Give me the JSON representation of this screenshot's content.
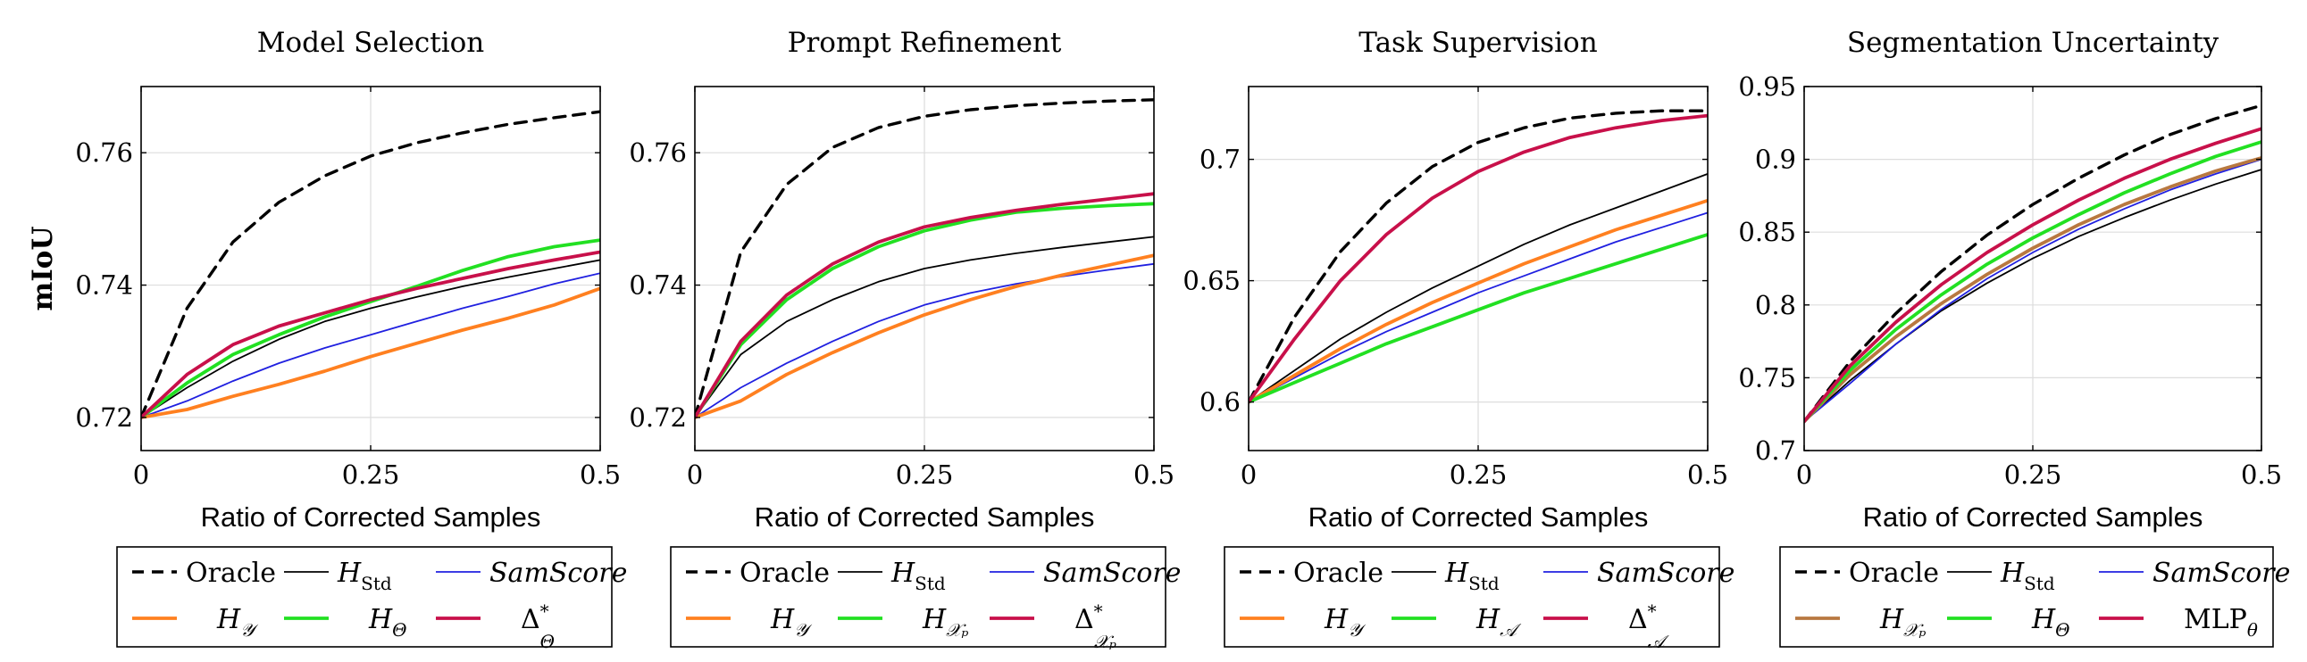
{
  "colors": {
    "oracle": "#000000",
    "h_std": "#000000",
    "samscore": "#2020e0",
    "h_y": "#ff8020",
    "green": "#22e022",
    "crimson": "#c8104a",
    "brown": "#b87840"
  },
  "y_axis_label": "mIoU",
  "chart_data": [
    {
      "type": "line",
      "title": "Model Selection",
      "xlabel": "Ratio of Corrected Samples",
      "ylabel": "mIoU",
      "xlim": [
        0,
        0.5
      ],
      "ylim": [
        0.715,
        0.77
      ],
      "x_ticks": [
        0,
        0.25,
        0.5
      ],
      "x_tick_labels": [
        "0",
        "0.25",
        "0.5"
      ],
      "y_ticks": [
        0.72,
        0.74,
        0.76
      ],
      "y_tick_labels": [
        "0.72",
        "0.74",
        "0.76"
      ],
      "grid": true,
      "legend_position": "below",
      "series": [
        {
          "name": "Oracle",
          "color": "#000000",
          "style": "dashed",
          "x": [
            0,
            0.05,
            0.1,
            0.15,
            0.2,
            0.25,
            0.3,
            0.35,
            0.4,
            0.45,
            0.5
          ],
          "y": [
            0.72,
            0.7365,
            0.7465,
            0.7525,
            0.7565,
            0.7595,
            0.7615,
            0.763,
            0.7643,
            0.7653,
            0.7662
          ]
        },
        {
          "name": "H_Std",
          "color": "#000000",
          "style": "thin",
          "x": [
            0,
            0.05,
            0.1,
            0.15,
            0.2,
            0.25,
            0.3,
            0.35,
            0.4,
            0.45,
            0.5
          ],
          "y": [
            0.72,
            0.7245,
            0.7285,
            0.7318,
            0.7345,
            0.7365,
            0.7382,
            0.7398,
            0.7412,
            0.7425,
            0.7438
          ]
        },
        {
          "name": "SamScore",
          "color": "#2020e0",
          "style": "thin",
          "x": [
            0,
            0.05,
            0.1,
            0.15,
            0.2,
            0.25,
            0.3,
            0.35,
            0.4,
            0.45,
            0.5
          ],
          "y": [
            0.72,
            0.7225,
            0.7255,
            0.7282,
            0.7305,
            0.7325,
            0.7345,
            0.7365,
            0.7383,
            0.7402,
            0.7418
          ]
        },
        {
          "name": "H_Y",
          "color": "#ff8020",
          "style": "thick",
          "x": [
            0,
            0.05,
            0.1,
            0.15,
            0.2,
            0.25,
            0.3,
            0.35,
            0.4,
            0.45,
            0.5
          ],
          "y": [
            0.72,
            0.7212,
            0.7232,
            0.725,
            0.727,
            0.7292,
            0.7312,
            0.7332,
            0.735,
            0.737,
            0.7395
          ]
        },
        {
          "name": "H_Θ",
          "color": "#22e022",
          "style": "thick",
          "x": [
            0,
            0.05,
            0.1,
            0.15,
            0.2,
            0.25,
            0.3,
            0.35,
            0.4,
            0.45,
            0.5
          ],
          "y": [
            0.72,
            0.7252,
            0.7295,
            0.7325,
            0.7352,
            0.7375,
            0.7398,
            0.7422,
            0.7443,
            0.7458,
            0.7468
          ]
        },
        {
          "name": "Δ*_Θ",
          "color": "#c8104a",
          "style": "thick",
          "x": [
            0,
            0.05,
            0.1,
            0.15,
            0.2,
            0.25,
            0.3,
            0.35,
            0.4,
            0.45,
            0.5
          ],
          "y": [
            0.72,
            0.7265,
            0.731,
            0.7338,
            0.7358,
            0.7378,
            0.7395,
            0.741,
            0.7425,
            0.7438,
            0.745
          ]
        }
      ],
      "legend_rows": [
        [
          {
            "label": "Oracle",
            "key": "oracle"
          },
          {
            "label": "H",
            "sub": "Std",
            "key": "h_std"
          },
          {
            "label": "SamScore",
            "key": "samscore",
            "italic": true
          }
        ],
        [
          {
            "label": "H",
            "sub": "𝒴",
            "key": "h_y"
          },
          {
            "label": "H",
            "sub": "Θ",
            "key": "green"
          },
          {
            "label": "Δ",
            "sup": "*",
            "sub": "Θ",
            "key": "crimson"
          }
        ]
      ]
    },
    {
      "type": "line",
      "title": "Prompt Refinement",
      "xlabel": "Ratio of Corrected Samples",
      "ylabel": "",
      "xlim": [
        0,
        0.5
      ],
      "ylim": [
        0.715,
        0.77
      ],
      "x_ticks": [
        0,
        0.25,
        0.5
      ],
      "x_tick_labels": [
        "0",
        "0.25",
        "0.5"
      ],
      "y_ticks": [
        0.72,
        0.74,
        0.76
      ],
      "y_tick_labels": [
        "0.72",
        "0.74",
        "0.76"
      ],
      "grid": true,
      "legend_position": "below",
      "series": [
        {
          "name": "Oracle",
          "color": "#000000",
          "style": "dashed",
          "x": [
            0,
            0.05,
            0.1,
            0.15,
            0.2,
            0.25,
            0.3,
            0.35,
            0.4,
            0.45,
            0.5
          ],
          "y": [
            0.72,
            0.745,
            0.7552,
            0.7608,
            0.7638,
            0.7655,
            0.7665,
            0.7671,
            0.7675,
            0.7678,
            0.768
          ]
        },
        {
          "name": "H_Std",
          "color": "#000000",
          "style": "thin",
          "x": [
            0,
            0.05,
            0.1,
            0.15,
            0.2,
            0.25,
            0.3,
            0.35,
            0.4,
            0.45,
            0.5
          ],
          "y": [
            0.72,
            0.7295,
            0.7345,
            0.7378,
            0.7405,
            0.7425,
            0.7438,
            0.7448,
            0.7457,
            0.7465,
            0.7473
          ]
        },
        {
          "name": "SamScore",
          "color": "#2020e0",
          "style": "thin",
          "x": [
            0,
            0.05,
            0.1,
            0.15,
            0.2,
            0.25,
            0.3,
            0.35,
            0.4,
            0.45,
            0.5
          ],
          "y": [
            0.72,
            0.7245,
            0.7282,
            0.7315,
            0.7345,
            0.737,
            0.7388,
            0.7402,
            0.7413,
            0.7423,
            0.7432
          ]
        },
        {
          "name": "H_Y",
          "color": "#ff8020",
          "style": "thick",
          "x": [
            0,
            0.05,
            0.1,
            0.15,
            0.2,
            0.25,
            0.3,
            0.35,
            0.4,
            0.45,
            0.5
          ],
          "y": [
            0.72,
            0.7225,
            0.7265,
            0.7298,
            0.7328,
            0.7355,
            0.7378,
            0.7398,
            0.7415,
            0.743,
            0.7445
          ]
        },
        {
          "name": "H_XP",
          "color": "#22e022",
          "style": "thick",
          "x": [
            0,
            0.05,
            0.1,
            0.15,
            0.2,
            0.25,
            0.3,
            0.35,
            0.4,
            0.45,
            0.5
          ],
          "y": [
            0.72,
            0.731,
            0.7378,
            0.7425,
            0.7458,
            0.7482,
            0.7498,
            0.751,
            0.7516,
            0.752,
            0.7523
          ]
        },
        {
          "name": "Δ*_XP",
          "color": "#c8104a",
          "style": "thick",
          "x": [
            0,
            0.05,
            0.1,
            0.15,
            0.2,
            0.25,
            0.3,
            0.35,
            0.4,
            0.45,
            0.5
          ],
          "y": [
            0.72,
            0.7315,
            0.7385,
            0.7432,
            0.7465,
            0.7488,
            0.7502,
            0.7513,
            0.7522,
            0.753,
            0.7538
          ]
        }
      ],
      "legend_rows": [
        [
          {
            "label": "Oracle",
            "key": "oracle"
          },
          {
            "label": "H",
            "sub": "Std",
            "key": "h_std"
          },
          {
            "label": "SamScore",
            "key": "samscore",
            "italic": true
          }
        ],
        [
          {
            "label": "H",
            "sub": "𝒴",
            "key": "h_y"
          },
          {
            "label": "H",
            "sub": "𝒳ₚ",
            "key": "green"
          },
          {
            "label": "Δ",
            "sup": "*",
            "sub": "𝒳ₚ",
            "key": "crimson"
          }
        ]
      ]
    },
    {
      "type": "line",
      "title": "Task Supervision",
      "xlabel": "Ratio of Corrected Samples",
      "ylabel": "",
      "xlim": [
        0,
        0.5
      ],
      "ylim": [
        0.58,
        0.73
      ],
      "x_ticks": [
        0,
        0.25,
        0.5
      ],
      "x_tick_labels": [
        "0",
        "0.25",
        "0.5"
      ],
      "y_ticks": [
        0.6,
        0.65,
        0.7
      ],
      "y_tick_labels": [
        "0.6",
        "0.65",
        "0.7"
      ],
      "grid": true,
      "legend_position": "below",
      "series": [
        {
          "name": "Oracle",
          "color": "#000000",
          "style": "dashed",
          "x": [
            0,
            0.05,
            0.1,
            0.15,
            0.2,
            0.25,
            0.3,
            0.35,
            0.4,
            0.45,
            0.5
          ],
          "y": [
            0.6,
            0.635,
            0.662,
            0.682,
            0.697,
            0.707,
            0.713,
            0.717,
            0.719,
            0.72,
            0.72
          ]
        },
        {
          "name": "H_Std",
          "color": "#000000",
          "style": "thin",
          "x": [
            0,
            0.05,
            0.1,
            0.15,
            0.2,
            0.25,
            0.3,
            0.35,
            0.4,
            0.45,
            0.5
          ],
          "y": [
            0.6,
            0.613,
            0.626,
            0.637,
            0.647,
            0.656,
            0.665,
            0.673,
            0.68,
            0.687,
            0.694
          ]
        },
        {
          "name": "SamScore",
          "color": "#2020e0",
          "style": "thin",
          "x": [
            0,
            0.05,
            0.1,
            0.15,
            0.2,
            0.25,
            0.3,
            0.35,
            0.4,
            0.45,
            0.5
          ],
          "y": [
            0.6,
            0.61,
            0.62,
            0.629,
            0.637,
            0.645,
            0.652,
            0.659,
            0.666,
            0.672,
            0.678
          ]
        },
        {
          "name": "H_Y",
          "color": "#ff8020",
          "style": "thick",
          "x": [
            0,
            0.05,
            0.1,
            0.15,
            0.2,
            0.25,
            0.3,
            0.35,
            0.4,
            0.45,
            0.5
          ],
          "y": [
            0.6,
            0.611,
            0.622,
            0.632,
            0.641,
            0.649,
            0.657,
            0.664,
            0.671,
            0.677,
            0.683
          ]
        },
        {
          "name": "H_A",
          "color": "#22e022",
          "style": "thick",
          "x": [
            0,
            0.05,
            0.1,
            0.15,
            0.2,
            0.25,
            0.3,
            0.35,
            0.4,
            0.45,
            0.5
          ],
          "y": [
            0.6,
            0.608,
            0.616,
            0.624,
            0.631,
            0.638,
            0.645,
            0.651,
            0.657,
            0.663,
            0.669
          ]
        },
        {
          "name": "Δ*_A",
          "color": "#c8104a",
          "style": "thick",
          "x": [
            0,
            0.05,
            0.1,
            0.15,
            0.2,
            0.25,
            0.3,
            0.35,
            0.4,
            0.45,
            0.5
          ],
          "y": [
            0.6,
            0.626,
            0.65,
            0.669,
            0.684,
            0.695,
            0.703,
            0.709,
            0.713,
            0.716,
            0.718
          ]
        }
      ],
      "legend_rows": [
        [
          {
            "label": "Oracle",
            "key": "oracle"
          },
          {
            "label": "H",
            "sub": "Std",
            "key": "h_std"
          },
          {
            "label": "SamScore",
            "key": "samscore",
            "italic": true
          }
        ],
        [
          {
            "label": "H",
            "sub": "𝒴",
            "key": "h_y"
          },
          {
            "label": "H",
            "sub": "𝒜",
            "key": "green"
          },
          {
            "label": "Δ",
            "sup": "*",
            "sub": "𝒜",
            "key": "crimson"
          }
        ]
      ]
    },
    {
      "type": "line",
      "title": "Segmentation Uncertainty",
      "xlabel": "Ratio of Corrected Samples",
      "ylabel": "",
      "xlim": [
        0,
        0.5
      ],
      "ylim": [
        0.7,
        0.95
      ],
      "x_ticks": [
        0,
        0.25,
        0.5
      ],
      "x_tick_labels": [
        "0",
        "0.25",
        "0.5"
      ],
      "y_ticks": [
        0.7,
        0.75,
        0.8,
        0.85,
        0.9,
        0.95
      ],
      "y_tick_labels": [
        "0.7",
        "0.75",
        "0.8",
        "0.85",
        "0.9",
        "0.95"
      ],
      "grid": true,
      "legend_position": "below",
      "series": [
        {
          "name": "Oracle",
          "color": "#000000",
          "style": "dashed",
          "x": [
            0,
            0.05,
            0.1,
            0.15,
            0.2,
            0.25,
            0.3,
            0.35,
            0.4,
            0.45,
            0.5
          ],
          "y": [
            0.72,
            0.761,
            0.794,
            0.823,
            0.848,
            0.869,
            0.887,
            0.903,
            0.917,
            0.928,
            0.937
          ]
        },
        {
          "name": "H_Std",
          "color": "#000000",
          "style": "thin",
          "x": [
            0,
            0.05,
            0.1,
            0.15,
            0.2,
            0.25,
            0.3,
            0.35,
            0.4,
            0.45,
            0.5
          ],
          "y": [
            0.72,
            0.748,
            0.773,
            0.796,
            0.815,
            0.832,
            0.847,
            0.86,
            0.872,
            0.883,
            0.893
          ]
        },
        {
          "name": "SamScore",
          "color": "#2020e0",
          "style": "thin",
          "x": [
            0,
            0.05,
            0.1,
            0.15,
            0.2,
            0.25,
            0.3,
            0.35,
            0.4,
            0.45,
            0.5
          ],
          "y": [
            0.72,
            0.746,
            0.773,
            0.797,
            0.818,
            0.836,
            0.852,
            0.866,
            0.879,
            0.89,
            0.9
          ]
        },
        {
          "name": "H_XP",
          "color": "#b87840",
          "style": "thick",
          "x": [
            0,
            0.05,
            0.1,
            0.15,
            0.2,
            0.25,
            0.3,
            0.35,
            0.4,
            0.45,
            0.5
          ],
          "y": [
            0.72,
            0.752,
            0.778,
            0.801,
            0.821,
            0.839,
            0.855,
            0.869,
            0.881,
            0.892,
            0.901
          ]
        },
        {
          "name": "H_Θ",
          "color": "#22e022",
          "style": "thick",
          "x": [
            0,
            0.05,
            0.1,
            0.15,
            0.2,
            0.25,
            0.3,
            0.35,
            0.4,
            0.45,
            0.5
          ],
          "y": [
            0.72,
            0.755,
            0.783,
            0.807,
            0.828,
            0.846,
            0.862,
            0.877,
            0.89,
            0.902,
            0.912
          ]
        },
        {
          "name": "MLP_θ",
          "color": "#c8104a",
          "style": "thick",
          "x": [
            0,
            0.05,
            0.1,
            0.15,
            0.2,
            0.25,
            0.3,
            0.35,
            0.4,
            0.45,
            0.5
          ],
          "y": [
            0.72,
            0.758,
            0.788,
            0.814,
            0.836,
            0.855,
            0.872,
            0.887,
            0.9,
            0.911,
            0.921
          ]
        }
      ],
      "legend_rows": [
        [
          {
            "label": "Oracle",
            "key": "oracle"
          },
          {
            "label": "H",
            "sub": "Std",
            "key": "h_std"
          },
          {
            "label": "SamScore",
            "key": "samscore",
            "italic": true
          }
        ],
        [
          {
            "label": "H",
            "sub": "𝒳ₚ",
            "key": "brown"
          },
          {
            "label": "H",
            "sub": "Θ",
            "key": "green"
          },
          {
            "label": "MLP",
            "sub": "θ",
            "key": "crimson",
            "upright": true
          }
        ]
      ]
    }
  ]
}
